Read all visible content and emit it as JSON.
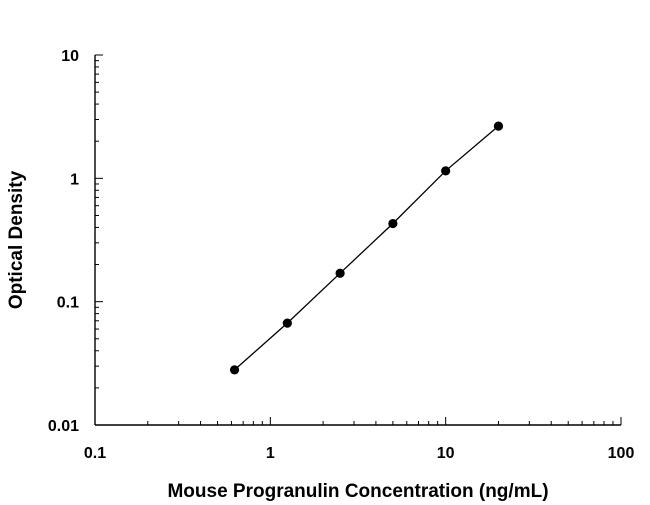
{
  "chart_data": {
    "type": "scatter",
    "title": "",
    "xlabel": "Mouse Progranulin Concentration (ng/mL)",
    "ylabel": "Optical Density",
    "xscale": "log",
    "yscale": "log",
    "xlim": [
      0.1,
      100
    ],
    "ylim": [
      0.01,
      10
    ],
    "x_ticks": [
      {
        "value": 0.1,
        "label": "0.1"
      },
      {
        "value": 1,
        "label": "1"
      },
      {
        "value": 10,
        "label": "10"
      },
      {
        "value": 100,
        "label": "100"
      }
    ],
    "y_ticks": [
      {
        "value": 0.01,
        "label": "0.01"
      },
      {
        "value": 0.1,
        "label": "0.1"
      },
      {
        "value": 1,
        "label": "1"
      },
      {
        "value": 10,
        "label": "10"
      }
    ],
    "grid": false,
    "legend": "none",
    "fit_line": true,
    "marker_color": "#000000",
    "series": [
      {
        "x": [
          0.625,
          1.25,
          2.5,
          5,
          10,
          20
        ],
        "y": [
          0.028,
          0.067,
          0.17,
          0.43,
          1.15,
          2.65
        ]
      }
    ]
  }
}
